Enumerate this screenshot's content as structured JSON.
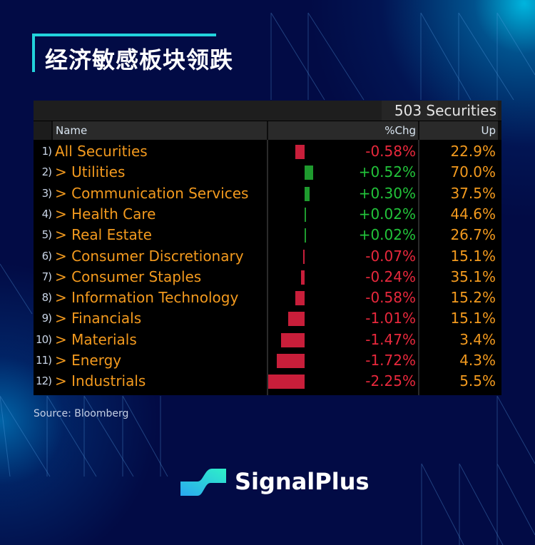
{
  "title": "经济敏感板块领跌",
  "table": {
    "securities_count": "503 Securities",
    "columns": {
      "name": "Name",
      "chg": "%Chg",
      "up": "Up"
    },
    "rows": [
      {
        "idx": "1)",
        "name": "All Securities",
        "chg": "-0.58%",
        "up": "22.9%"
      },
      {
        "idx": "2)",
        "name": "> Utilities",
        "chg": "+0.52%",
        "up": "70.0%"
      },
      {
        "idx": "3)",
        "name": "> Communication Services",
        "chg": "+0.30%",
        "up": "37.5%"
      },
      {
        "idx": "4)",
        "name": "> Health Care",
        "chg": "+0.02%",
        "up": "44.6%"
      },
      {
        "idx": "5)",
        "name": "> Real Estate",
        "chg": "+0.02%",
        "up": "26.7%"
      },
      {
        "idx": "6)",
        "name": "> Consumer Discretionary",
        "chg": "-0.07%",
        "up": "15.1%"
      },
      {
        "idx": "7)",
        "name": "> Consumer Staples",
        "chg": "-0.24%",
        "up": "35.1%"
      },
      {
        "idx": "8)",
        "name": "> Information Technology",
        "chg": "-0.58%",
        "up": "15.2%"
      },
      {
        "idx": "9)",
        "name": "> Financials",
        "chg": "-1.01%",
        "up": "15.1%"
      },
      {
        "idx": "10)",
        "name": "> Materials",
        "chg": "-1.47%",
        "up": "3.4%"
      },
      {
        "idx": "11)",
        "name": "> Energy",
        "chg": "-1.72%",
        "up": "4.3%"
      },
      {
        "idx": "12)",
        "name": "> Industrials",
        "chg": "-2.25%",
        "up": "5.5%"
      }
    ]
  },
  "colors": {
    "positive": "#22c33a",
    "negative": "#e8283c",
    "bar_positive": "#1e9a2e",
    "bar_negative": "#c81e3a",
    "label": "#f39a1e",
    "accent": "#22d3dc"
  },
  "source": "Source: Bloomberg",
  "brand": "SignalPlus",
  "chart_data": {
    "type": "bar",
    "title": "经济敏感板块领跌",
    "subtitle": "503 Securities",
    "xlabel": "",
    "ylabel": "%Chg",
    "categories": [
      "All Securities",
      "Utilities",
      "Communication Services",
      "Health Care",
      "Real Estate",
      "Consumer Discretionary",
      "Consumer Staples",
      "Information Technology",
      "Financials",
      "Materials",
      "Energy",
      "Industrials"
    ],
    "series": [
      {
        "name": "%Chg",
        "values": [
          -0.58,
          0.52,
          0.3,
          0.02,
          0.02,
          -0.07,
          -0.24,
          -0.58,
          -1.01,
          -1.47,
          -1.72,
          -2.25
        ]
      },
      {
        "name": "Up",
        "values": [
          22.9,
          70.0,
          37.5,
          44.6,
          26.7,
          15.1,
          35.1,
          15.2,
          15.1,
          3.4,
          4.3,
          5.5
        ]
      }
    ],
    "orientation": "horizontal",
    "source": "Bloomberg"
  }
}
